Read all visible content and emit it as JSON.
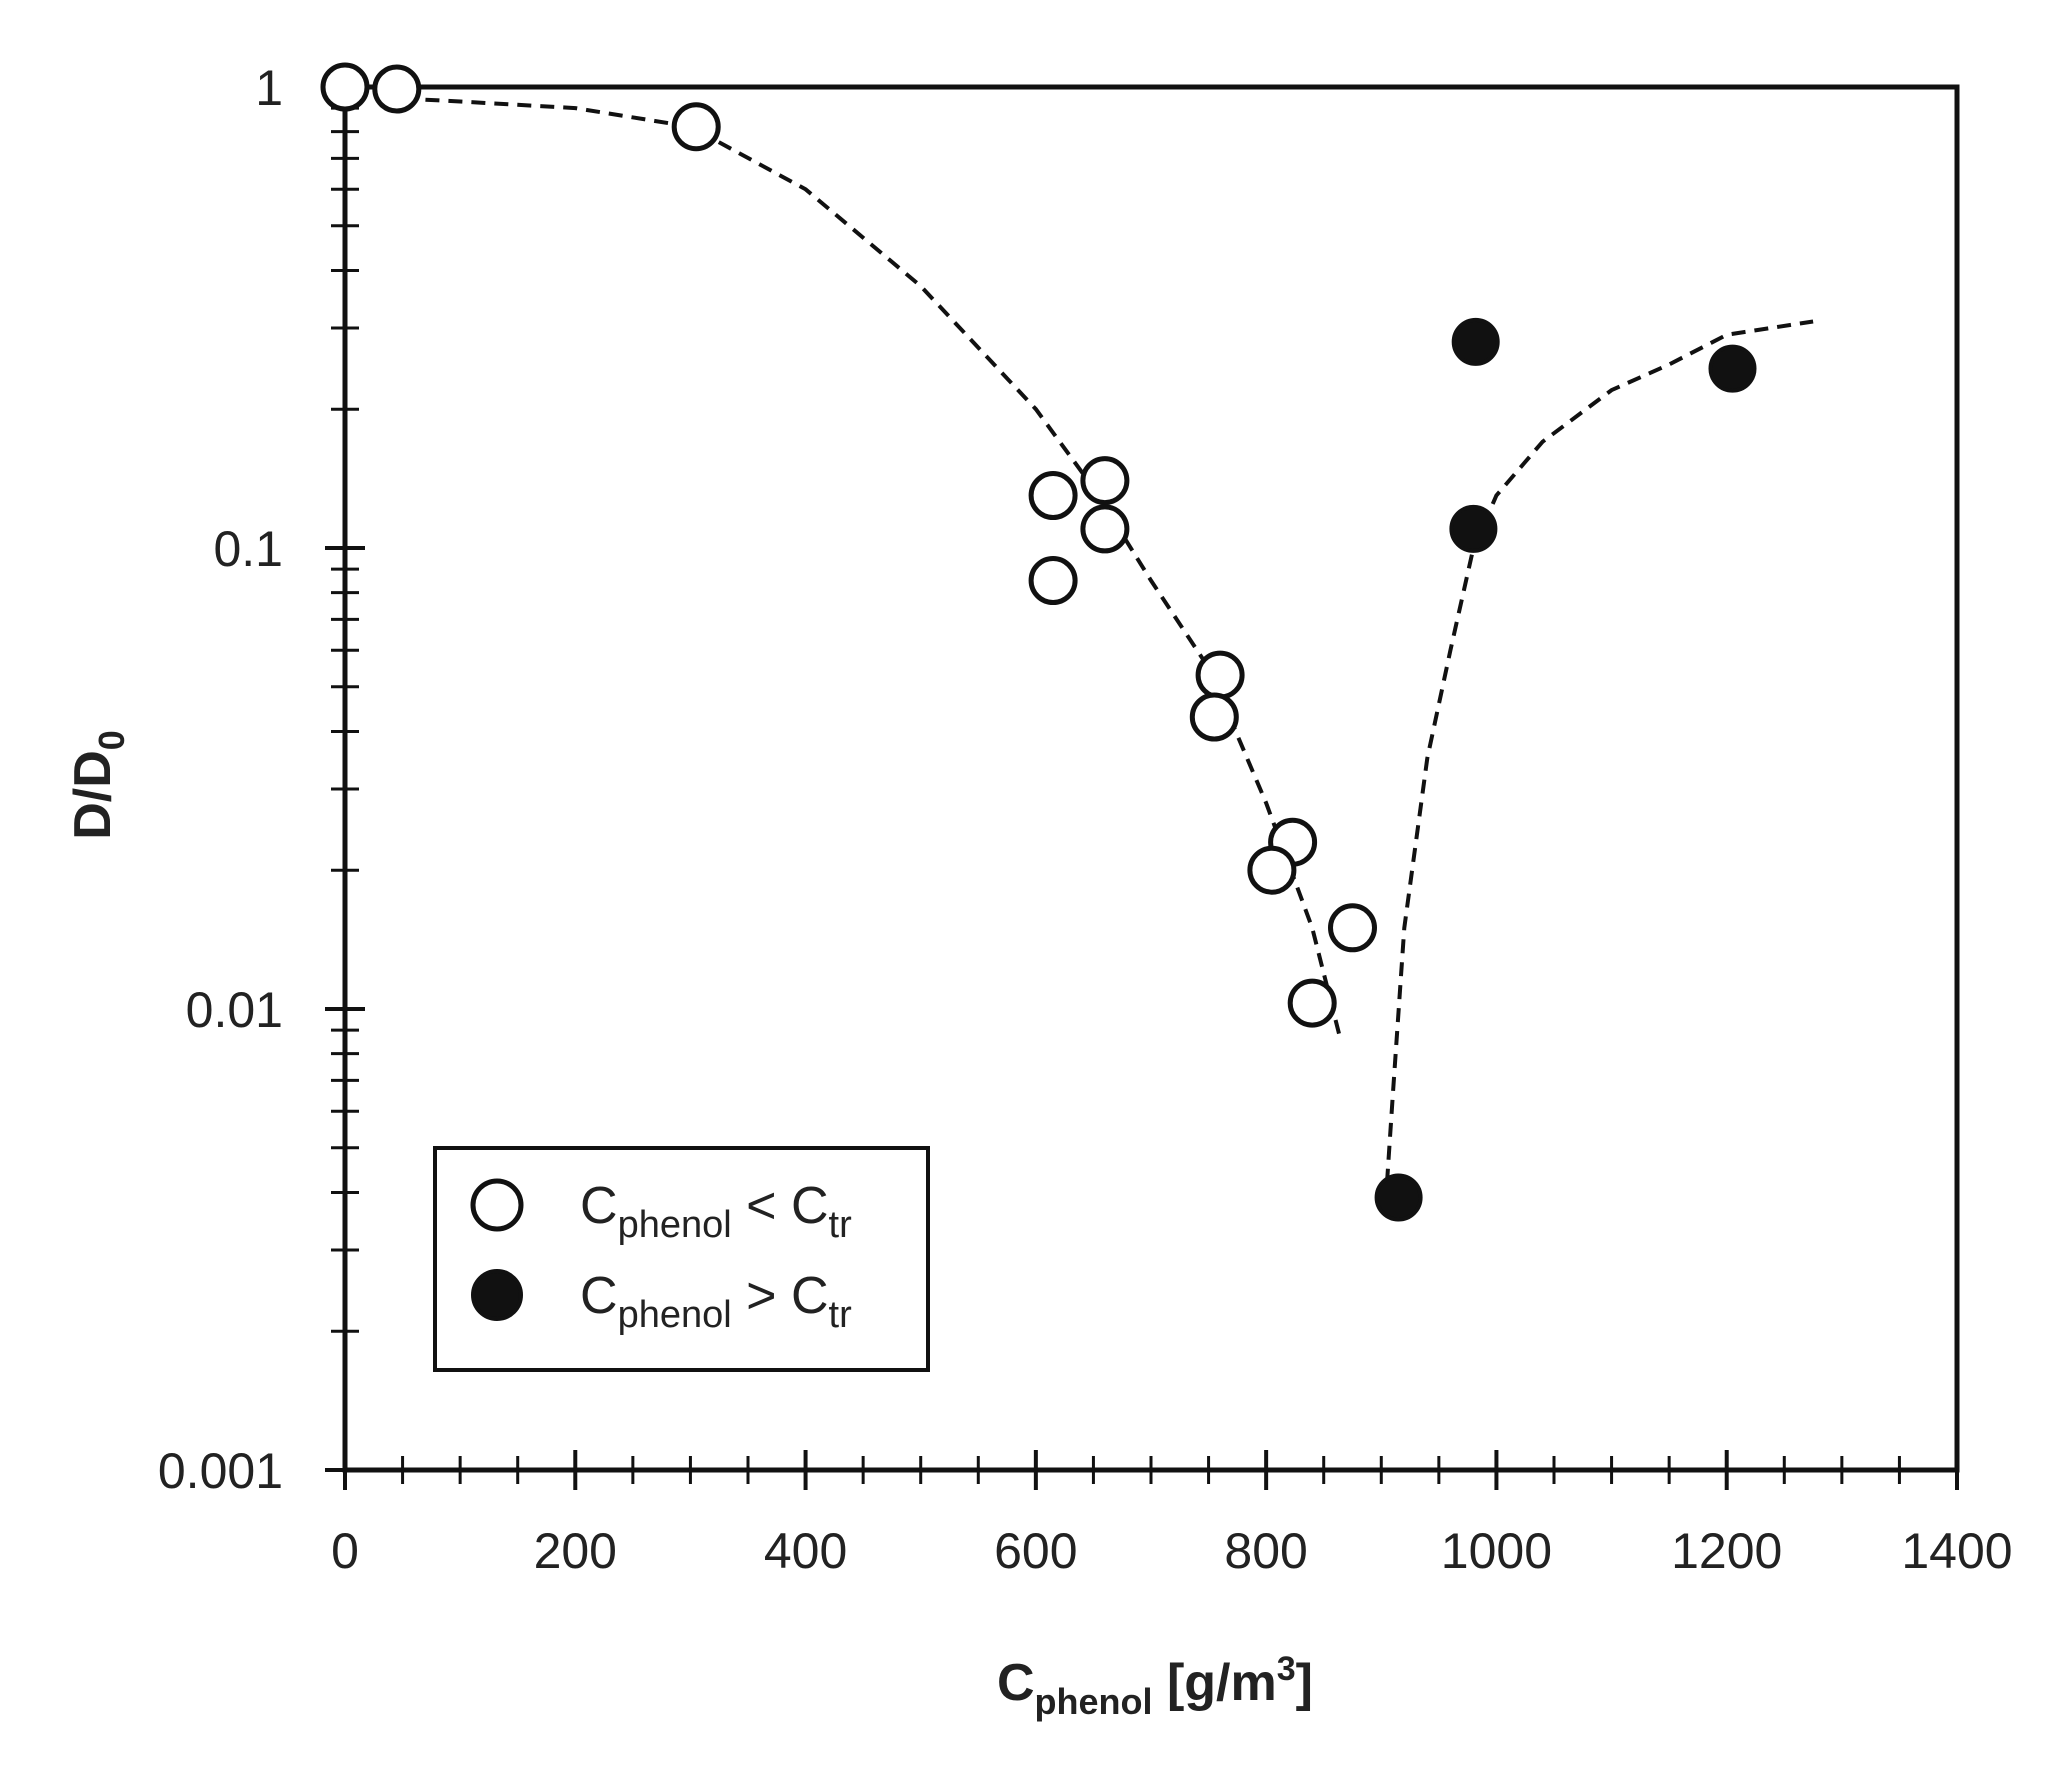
{
  "chart_data": {
    "type": "scatter",
    "title": "",
    "xlabel_main": "C",
    "xlabel_sub": "phenol",
    "xlabel_rest": " [g/m",
    "xlabel_sup": "3",
    "xlabel_close": "]",
    "ylabel_main": "D/D",
    "ylabel_sub": "0",
    "x_scale": "linear",
    "y_scale": "log",
    "xlim": [
      0,
      1400
    ],
    "ylim": [
      0.001,
      1
    ],
    "x_ticks": [
      "0",
      "200",
      "400",
      "600",
      "800",
      "1000",
      "1200",
      "1400"
    ],
    "y_ticks": [
      "0.001",
      "0.01",
      "0.1",
      "1"
    ],
    "grid": false,
    "legend_position": "bottom-left",
    "legend": [
      {
        "marker": "open-circle",
        "c": "C",
        "sub1": "phenol",
        "op": " < ",
        "c2": "C",
        "sub2": "tr"
      },
      {
        "marker": "filled-circle",
        "c": "C",
        "sub1": "phenol",
        "op": " > ",
        "c2": "C",
        "sub2": "tr"
      }
    ],
    "series": [
      {
        "marker": "open-circle",
        "points": [
          {
            "x": 0,
            "y": 1.0
          },
          {
            "x": 45,
            "y": 0.99
          },
          {
            "x": 305,
            "y": 0.82
          },
          {
            "x": 615,
            "y": 0.13
          },
          {
            "x": 660,
            "y": 0.14
          },
          {
            "x": 660,
            "y": 0.11
          },
          {
            "x": 615,
            "y": 0.085
          },
          {
            "x": 760,
            "y": 0.053
          },
          {
            "x": 755,
            "y": 0.043
          },
          {
            "x": 823,
            "y": 0.023
          },
          {
            "x": 805,
            "y": 0.02
          },
          {
            "x": 875,
            "y": 0.015
          },
          {
            "x": 840,
            "y": 0.0103
          }
        ]
      },
      {
        "marker": "filled-circle",
        "points": [
          {
            "x": 915,
            "y": 0.0039
          },
          {
            "x": 980,
            "y": 0.11
          },
          {
            "x": 982,
            "y": 0.28
          },
          {
            "x": 1205,
            "y": 0.245
          }
        ]
      }
    ],
    "fit_curves": [
      {
        "style": "dashed",
        "points": [
          [
            30,
            0.95
          ],
          [
            100,
            0.93
          ],
          [
            200,
            0.9
          ],
          [
            300,
            0.82
          ],
          [
            400,
            0.6
          ],
          [
            500,
            0.37
          ],
          [
            600,
            0.2
          ],
          [
            650,
            0.135
          ],
          [
            700,
            0.085
          ],
          [
            750,
            0.055
          ],
          [
            800,
            0.028
          ],
          [
            840,
            0.015
          ],
          [
            865,
            0.0085
          ]
        ]
      },
      {
        "style": "dashed",
        "points": [
          [
            905,
            0.0042
          ],
          [
            910,
            0.0065
          ],
          [
            920,
            0.015
          ],
          [
            940,
            0.035
          ],
          [
            960,
            0.06
          ],
          [
            980,
            0.1
          ],
          [
            1000,
            0.13
          ],
          [
            1040,
            0.17
          ],
          [
            1100,
            0.22
          ],
          [
            1150,
            0.25
          ],
          [
            1200,
            0.29
          ],
          [
            1275,
            0.31
          ]
        ]
      }
    ],
    "colors": {
      "axis": "#111111",
      "marker": "#111111",
      "background": "#ffffff"
    }
  }
}
